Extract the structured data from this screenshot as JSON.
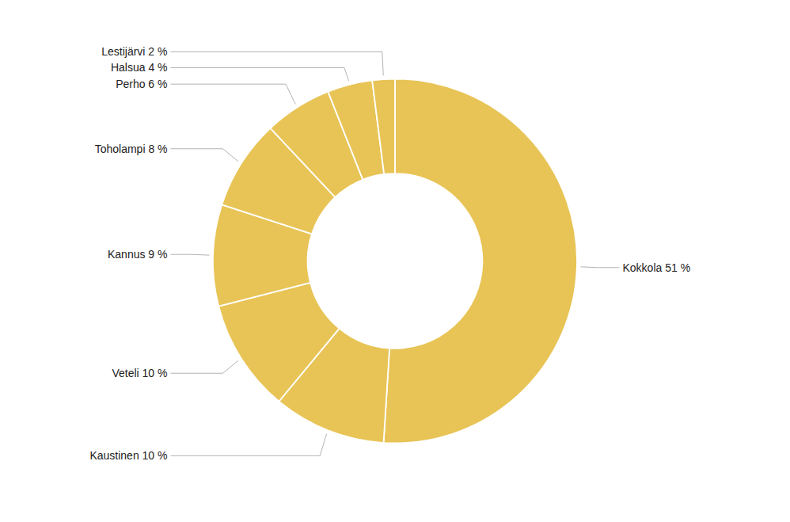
{
  "chart_data": {
    "type": "donut",
    "values": [
      51,
      10,
      10,
      9,
      8,
      6,
      4,
      2
    ],
    "value_labels": [
      "Kokkola 51 %",
      "Kaustinen 10 %",
      "Veteli 10 %",
      "Kannus 9 %",
      "Toholampi 8 %",
      "Perho 6 %",
      "Halsua 4 %",
      "Lestijärvi 2 %"
    ],
    "data_labels": true,
    "color": "#E8C456"
  }
}
